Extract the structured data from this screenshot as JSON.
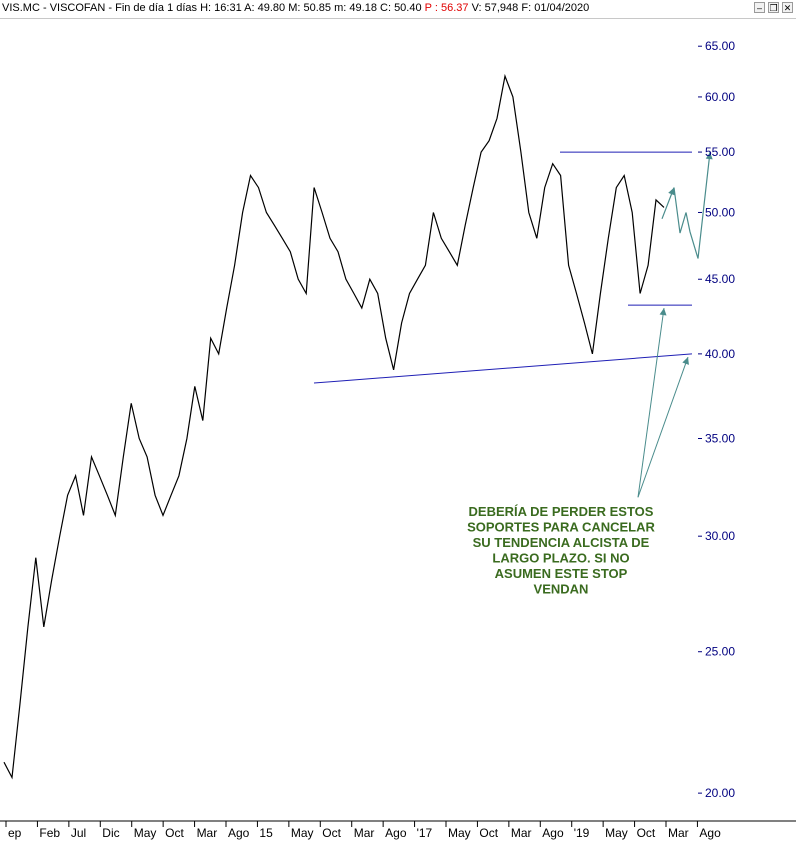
{
  "title_bar": {
    "symbol": "VIS.MC",
    "name": "VISCOFAN",
    "period": "Fin de día 1 días",
    "H_label": "H:",
    "H": "16:31",
    "A_label": "A:",
    "A": "49.80",
    "M_label": "M:",
    "M": "50.85",
    "m_label": "m:",
    "m": "49.18",
    "C_label": "C:",
    "C": "50.40",
    "P_label": "P :",
    "P": "56.37",
    "V_label": "V:",
    "V": "57,948",
    "F_label": "F:",
    "F": "01/04/2020"
  },
  "window_buttons": {
    "minimize": "–",
    "restore": "❐",
    "close": "✕"
  },
  "colors": {
    "price": "#000000",
    "lines": "#1f1fb5",
    "arrows": "#4a8c8c",
    "text": "#3a6b1f",
    "yaxis": "#000080"
  },
  "chart_data": {
    "type": "line",
    "scale": "log",
    "ylim": [
      19.2,
      67
    ],
    "y_ticks": [
      20,
      25,
      30,
      35,
      40,
      45,
      50,
      55,
      60,
      65
    ],
    "y_tick_labels": [
      "20.00",
      "25.00",
      "30.00",
      "35.00",
      "40.00",
      "45.00",
      "50.00",
      "55.00",
      "60.00",
      "65.00"
    ],
    "x_tick_labels": [
      "ep",
      "Feb",
      "Jul",
      "Dic",
      "May",
      "Oct",
      "Mar",
      "Ago",
      "15",
      "May",
      "Oct",
      "Mar",
      "Ago",
      "'17",
      "May",
      "Oct",
      "Mar",
      "Ago",
      "'19",
      "May",
      "Oct",
      "Mar",
      "Ago"
    ],
    "series": [
      {
        "values": [
          21,
          20.5,
          23,
          26,
          29,
          26,
          28,
          30,
          32,
          33,
          31,
          34,
          33,
          32,
          31,
          34,
          37,
          35,
          34,
          32,
          31,
          32,
          33,
          35,
          38,
          36,
          41,
          40,
          43,
          46,
          50,
          53,
          52,
          50,
          49,
          48,
          47,
          45,
          44,
          52,
          50,
          48,
          47,
          45,
          44,
          43,
          45,
          44,
          41,
          39,
          42,
          44,
          45,
          46,
          50,
          48,
          47,
          46,
          49,
          52,
          55,
          56,
          58,
          62,
          60,
          55,
          50,
          48,
          52,
          54,
          53,
          46,
          44,
          42,
          40,
          44,
          48,
          52,
          53,
          50,
          44,
          46,
          51,
          50.4
        ]
      }
    ],
    "annotations": {
      "resistance_line": 55,
      "support_line": 43.2,
      "trend_support": [
        38.2,
        40.0
      ],
      "text_lines": [
        "DEBERÍA DE PERDER ESTOS",
        "SOPORTES PARA CANCELAR",
        "SU TENDENCIA ALCISTA DE",
        "LARGO PLAZO. SI NO",
        "ASUMEN ESTE STOP",
        "VENDAN"
      ]
    }
  }
}
